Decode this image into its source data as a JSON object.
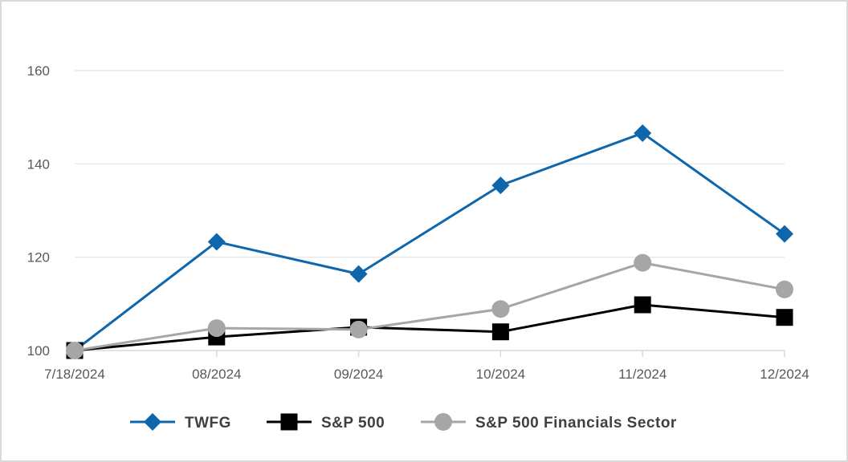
{
  "chart_data": {
    "type": "line",
    "categories": [
      "7/18/2024",
      "08/2024",
      "09/2024",
      "10/2024",
      "11/2024",
      "12/2024"
    ],
    "series": [
      {
        "name": "TWFG",
        "values": [
          100,
          123.3,
          116.4,
          135.4,
          146.6,
          125.0
        ],
        "color": "#0f66ab",
        "marker": "diamond"
      },
      {
        "name": "S&P 500",
        "values": [
          100,
          102.9,
          105.0,
          104.0,
          109.8,
          107.1
        ],
        "color": "#000000",
        "marker": "square"
      },
      {
        "name": "S&P 500 Financials Sector",
        "values": [
          100,
          104.8,
          104.5,
          108.9,
          118.8,
          113.1
        ],
        "color": "#a6a6a6",
        "marker": "circle"
      }
    ],
    "y_ticks": [
      "100",
      "120",
      "140",
      "160"
    ],
    "ylim": [
      100,
      160
    ],
    "grid": true,
    "legend_position": "bottom"
  }
}
